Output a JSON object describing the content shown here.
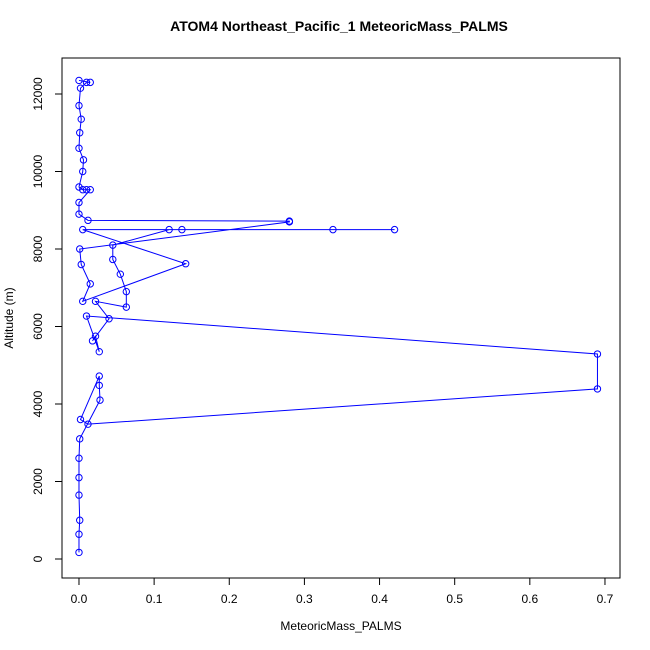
{
  "chart_data": {
    "type": "line",
    "title": "ATOM4 Northeast_Pacific_1 MeteoricMass_PALMS",
    "x_label": "MeteoricMass_PALMS",
    "y_label": "Altitude (m)",
    "color": "#0000ff",
    "x": [
      0,
      0,
      0.001,
      0,
      0,
      0,
      0.001,
      0.028,
      0.027,
      0.027,
      0.002,
      0.012,
      0.69,
      0.69,
      0.01,
      0.027,
      0.022,
      0.018,
      0.04,
      0.022,
      0.063,
      0.063,
      0.055,
      0.045,
      0.045,
      0.12,
      0.137,
      0.338,
      0.42,
      0.005,
      0.142,
      0.005,
      0.015,
      0.003,
      0.001,
      0.28,
      0.28,
      0.012,
      0,
      0,
      0.015,
      0.01,
      0.005,
      0,
      0.005,
      0.006,
      0,
      0.001,
      0.003,
      0,
      0.002,
      0.01,
      0.015,
      0
    ],
    "values": [
      170,
      640,
      1000,
      1650,
      2100,
      2600,
      3100,
      4100,
      4480,
      4720,
      3600,
      3480,
      4390,
      5290,
      6270,
      5350,
      5750,
      5630,
      6200,
      6650,
      6500,
      6900,
      7350,
      7730,
      8100,
      8500,
      8500,
      8500,
      8500,
      8500,
      7620,
      6650,
      7100,
      7600,
      8000,
      8700,
      8720,
      8740,
      8900,
      9200,
      9530,
      9530,
      9530,
      9600,
      10000,
      10300,
      10600,
      11000,
      11350,
      11700,
      12150,
      12300,
      12300,
      12350
    ],
    "xlim": [
      -0.0226,
      0.72
    ],
    "ylim": [
      -490,
      12929
    ],
    "xticks": [
      {
        "value": 0,
        "label": "0.0"
      },
      0.1,
      0.2,
      0.3,
      0.4,
      0.5,
      0.6,
      0.7
    ],
    "yticks": [
      0,
      2000,
      4000,
      6000,
      8000,
      10000,
      12000
    ]
  }
}
